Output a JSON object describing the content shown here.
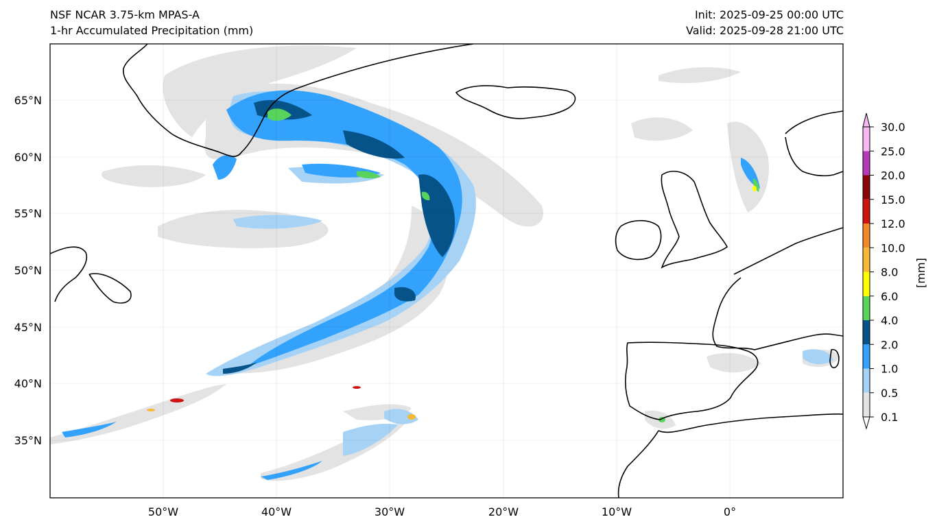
{
  "header": {
    "model": "NSF NCAR 3.75-km MPAS-A",
    "field": "1-hr Accumulated Precipitation (mm)",
    "init": "Init: 2025-09-25 00:00 UTC",
    "valid": "Valid: 2025-09-28 21:00 UTC"
  },
  "map": {
    "lat_labels": [
      "65°N",
      "60°N",
      "55°N",
      "50°N",
      "45°N",
      "40°N",
      "35°N"
    ],
    "lon_labels": [
      "50°W",
      "40°W",
      "30°W",
      "20°W",
      "10°W",
      "0°"
    ],
    "lat_range": [
      30,
      69
    ],
    "lon_range": [
      -60,
      10
    ],
    "grid": true,
    "features": [
      "Greenland",
      "Iceland",
      "Ireland",
      "Great Britain",
      "Scandinavia",
      "Iberian Peninsula",
      "France",
      "Newfoundland",
      "North Africa"
    ]
  },
  "colorbar": {
    "label": "[mm]",
    "ticks": [
      "0.1",
      "0.5",
      "1.0",
      "2.0",
      "4.0",
      "6.0",
      "8.0",
      "10.0",
      "12.0",
      "15.0",
      "20.0",
      "25.0",
      "30.0"
    ],
    "colors": [
      "#e3e3e3",
      "#a6d2f5",
      "#33a2fc",
      "#06538a",
      "#58d35b",
      "#ffff00",
      "#f7b836",
      "#f08b28",
      "#cd1410",
      "#8a0408",
      "#b53bb8",
      "#f5b8f2"
    ]
  }
}
